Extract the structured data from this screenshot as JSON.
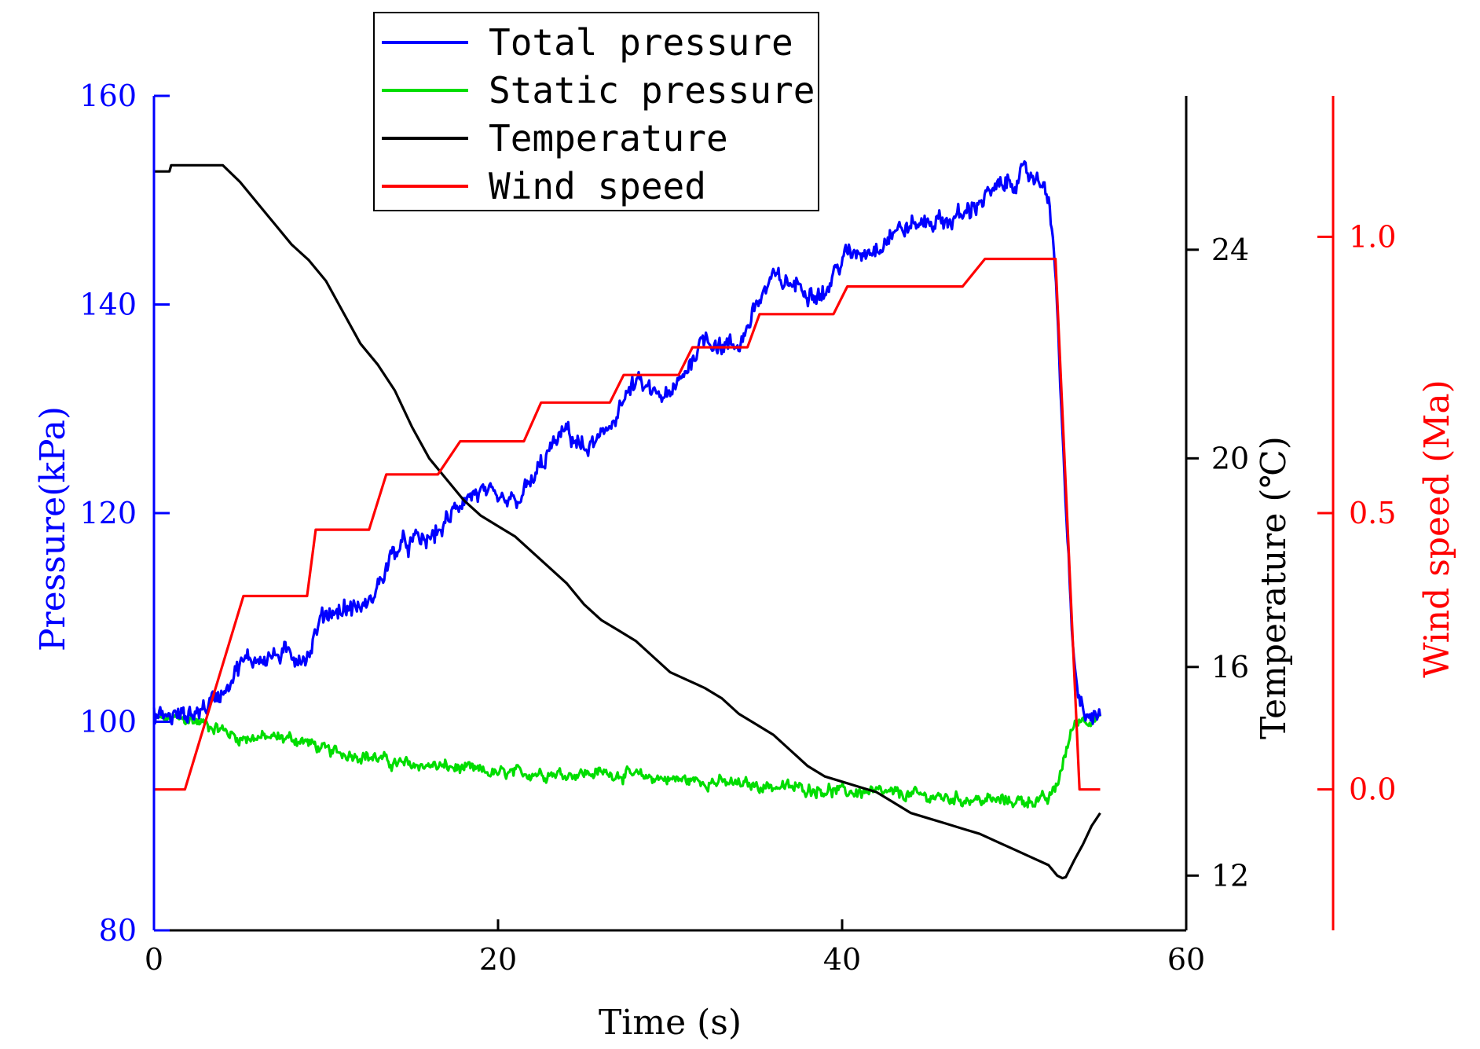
{
  "chart_data": {
    "type": "line",
    "x_axis": {
      "label": "Time (s)",
      "range": [
        0,
        60
      ],
      "ticks": [
        0,
        20,
        40,
        60
      ],
      "tick_labels": [
        "0",
        "20",
        "40",
        "60"
      ],
      "color": "#000000"
    },
    "y_axes": [
      {
        "id": "pressure",
        "label": "Pressure(kPa)",
        "range": [
          80,
          160
        ],
        "ticks": [
          80,
          100,
          120,
          140,
          160
        ],
        "tick_labels": [
          "80",
          "100",
          "120",
          "140",
          "160"
        ],
        "color": "#0000ff",
        "side": "left"
      },
      {
        "id": "temperature",
        "label": "Temperature (℃)",
        "range": [
          10.95,
          26.95
        ],
        "ticks": [
          12,
          16,
          20,
          24
        ],
        "tick_labels": [
          "12",
          "16",
          "20",
          "24"
        ],
        "color": "#000000",
        "side": "right"
      },
      {
        "id": "wind",
        "label": "Wind speed (Ma)",
        "range": [
          -0.255,
          1.255
        ],
        "ticks": [
          0.0,
          0.5,
          1.0
        ],
        "tick_labels": [
          "0.0",
          "0.5",
          "1.0"
        ],
        "color": "#ff0000",
        "side": "far-right"
      }
    ],
    "series": [
      {
        "name": "Total pressure",
        "axis": "pressure",
        "color": "#0000ff",
        "noise": 0.9,
        "points": [
          [
            0,
            100.5
          ],
          [
            2,
            100.6
          ],
          [
            3,
            101.5
          ],
          [
            4,
            103
          ],
          [
            5,
            105.5
          ],
          [
            6,
            106.2
          ],
          [
            7,
            106.3
          ],
          [
            8,
            106.4
          ],
          [
            9,
            106.3
          ],
          [
            9.5,
            109
          ],
          [
            10,
            110.5
          ],
          [
            12,
            111
          ],
          [
            12.5,
            111.2
          ],
          [
            13,
            113
          ],
          [
            14,
            116.5
          ],
          [
            15,
            117.2
          ],
          [
            16,
            117.5
          ],
          [
            17,
            119
          ],
          [
            18,
            121.5
          ],
          [
            19,
            122
          ],
          [
            20,
            121
          ],
          [
            21,
            121
          ],
          [
            22,
            123
          ],
          [
            23,
            126
          ],
          [
            24,
            128
          ],
          [
            25,
            126
          ],
          [
            26,
            127
          ],
          [
            27,
            130
          ],
          [
            28,
            132.5
          ],
          [
            29,
            131.5
          ],
          [
            30,
            131
          ],
          [
            31,
            134
          ],
          [
            32,
            137
          ],
          [
            33,
            136
          ],
          [
            34,
            136
          ],
          [
            35,
            140
          ],
          [
            36,
            142.5
          ],
          [
            37,
            142
          ],
          [
            38,
            141.5
          ],
          [
            39,
            141
          ],
          [
            40,
            144.5
          ],
          [
            41,
            145
          ],
          [
            42,
            145.5
          ],
          [
            43,
            147
          ],
          [
            44,
            147.5
          ],
          [
            45,
            148
          ],
          [
            46,
            148
          ],
          [
            47,
            148.5
          ],
          [
            48,
            150
          ],
          [
            49,
            151
          ],
          [
            50,
            152
          ],
          [
            51,
            152.5
          ],
          [
            52,
            151
          ],
          [
            52.5,
            140
          ],
          [
            53,
            120
          ],
          [
            53.5,
            105
          ],
          [
            54,
            100.5
          ],
          [
            55,
            100.5
          ]
        ]
      },
      {
        "name": "Static pressure",
        "axis": "pressure",
        "color": "#00dd00",
        "noise": 0.55,
        "points": [
          [
            0,
            100.3
          ],
          [
            2,
            100.2
          ],
          [
            3,
            99.8
          ],
          [
            4,
            99.2
          ],
          [
            5,
            98.4
          ],
          [
            6,
            98.5
          ],
          [
            8,
            98.4
          ],
          [
            9,
            98
          ],
          [
            10,
            97.2
          ],
          [
            12,
            96.8
          ],
          [
            13,
            96.5
          ],
          [
            14,
            96
          ],
          [
            16,
            95.8
          ],
          [
            18,
            95.5
          ],
          [
            20,
            95
          ],
          [
            22,
            95.1
          ],
          [
            24,
            95
          ],
          [
            26,
            95.1
          ],
          [
            27,
            95
          ],
          [
            28,
            94.8
          ],
          [
            30,
            94.5
          ],
          [
            32,
            94.3
          ],
          [
            34,
            94
          ],
          [
            36,
            93.8
          ],
          [
            38,
            93.6
          ],
          [
            40,
            93.3
          ],
          [
            42,
            93.2
          ],
          [
            44,
            93
          ],
          [
            46,
            92.7
          ],
          [
            48,
            92.5
          ],
          [
            50,
            92.4
          ],
          [
            52,
            92.5
          ],
          [
            52.5,
            94
          ],
          [
            53,
            97
          ],
          [
            53.5,
            100
          ],
          [
            54,
            100.3
          ],
          [
            55,
            100.3
          ]
        ]
      },
      {
        "name": "Temperature",
        "axis": "temperature",
        "color": "#000000",
        "noise": 0,
        "points": [
          [
            0,
            25.5
          ],
          [
            0.9,
            25.5
          ],
          [
            1,
            25.62
          ],
          [
            1.5,
            25.62
          ],
          [
            4,
            25.62
          ],
          [
            5,
            25.3
          ],
          [
            6,
            24.9
          ],
          [
            7,
            24.5
          ],
          [
            8,
            24.1
          ],
          [
            9,
            23.8
          ],
          [
            10,
            23.4
          ],
          [
            11,
            22.8
          ],
          [
            12,
            22.2
          ],
          [
            13,
            21.8
          ],
          [
            14,
            21.3
          ],
          [
            15,
            20.6
          ],
          [
            16,
            20.0
          ],
          [
            17,
            19.6
          ],
          [
            18,
            19.2
          ],
          [
            19,
            18.9
          ],
          [
            20,
            18.7
          ],
          [
            21,
            18.5
          ],
          [
            22,
            18.2
          ],
          [
            23,
            17.9
          ],
          [
            24,
            17.6
          ],
          [
            25,
            17.2
          ],
          [
            26,
            16.9
          ],
          [
            27,
            16.7
          ],
          [
            28,
            16.5
          ],
          [
            29,
            16.2
          ],
          [
            30,
            15.9
          ],
          [
            31,
            15.75
          ],
          [
            32,
            15.6
          ],
          [
            33,
            15.4
          ],
          [
            34,
            15.1
          ],
          [
            35,
            14.9
          ],
          [
            36,
            14.7
          ],
          [
            37,
            14.4
          ],
          [
            38,
            14.1
          ],
          [
            39,
            13.9
          ],
          [
            40,
            13.8
          ],
          [
            41,
            13.7
          ],
          [
            42,
            13.6
          ],
          [
            43,
            13.4
          ],
          [
            44,
            13.2
          ],
          [
            45,
            13.1
          ],
          [
            46,
            13.0
          ],
          [
            47,
            12.9
          ],
          [
            48,
            12.8
          ],
          [
            49,
            12.65
          ],
          [
            50,
            12.5
          ],
          [
            51,
            12.35
          ],
          [
            52,
            12.2
          ],
          [
            52.5,
            12.0
          ],
          [
            52.8,
            11.95
          ],
          [
            53,
            11.97
          ],
          [
            53.5,
            12.3
          ],
          [
            54,
            12.6
          ],
          [
            54.5,
            12.95
          ],
          [
            55,
            13.2
          ]
        ]
      },
      {
        "name": "Wind speed",
        "axis": "wind",
        "color": "#ff0000",
        "noise": 0,
        "points": [
          [
            0,
            0.0
          ],
          [
            1.8,
            0.0
          ],
          [
            5.2,
            0.35
          ],
          [
            8.9,
            0.35
          ],
          [
            9.4,
            0.47
          ],
          [
            12.5,
            0.47
          ],
          [
            13.5,
            0.57
          ],
          [
            16.5,
            0.57
          ],
          [
            17.8,
            0.63
          ],
          [
            21.5,
            0.63
          ],
          [
            22.5,
            0.7
          ],
          [
            26.5,
            0.7
          ],
          [
            27.3,
            0.75
          ],
          [
            30.5,
            0.75
          ],
          [
            31.3,
            0.8
          ],
          [
            34.5,
            0.8
          ],
          [
            35.2,
            0.86
          ],
          [
            39.5,
            0.86
          ],
          [
            40.3,
            0.91
          ],
          [
            47,
            0.91
          ],
          [
            48.3,
            0.96
          ],
          [
            52.4,
            0.96
          ],
          [
            53.8,
            0.0
          ],
          [
            55,
            0.0
          ]
        ]
      }
    ],
    "legend": {
      "placement": "top-center",
      "entries": [
        {
          "name": "Total pressure",
          "color": "#0000ff"
        },
        {
          "name": "Static pressure",
          "color": "#00dd00"
        },
        {
          "name": "Temperature",
          "color": "#000000"
        },
        {
          "name": "Wind speed",
          "color": "#ff0000"
        }
      ]
    }
  }
}
